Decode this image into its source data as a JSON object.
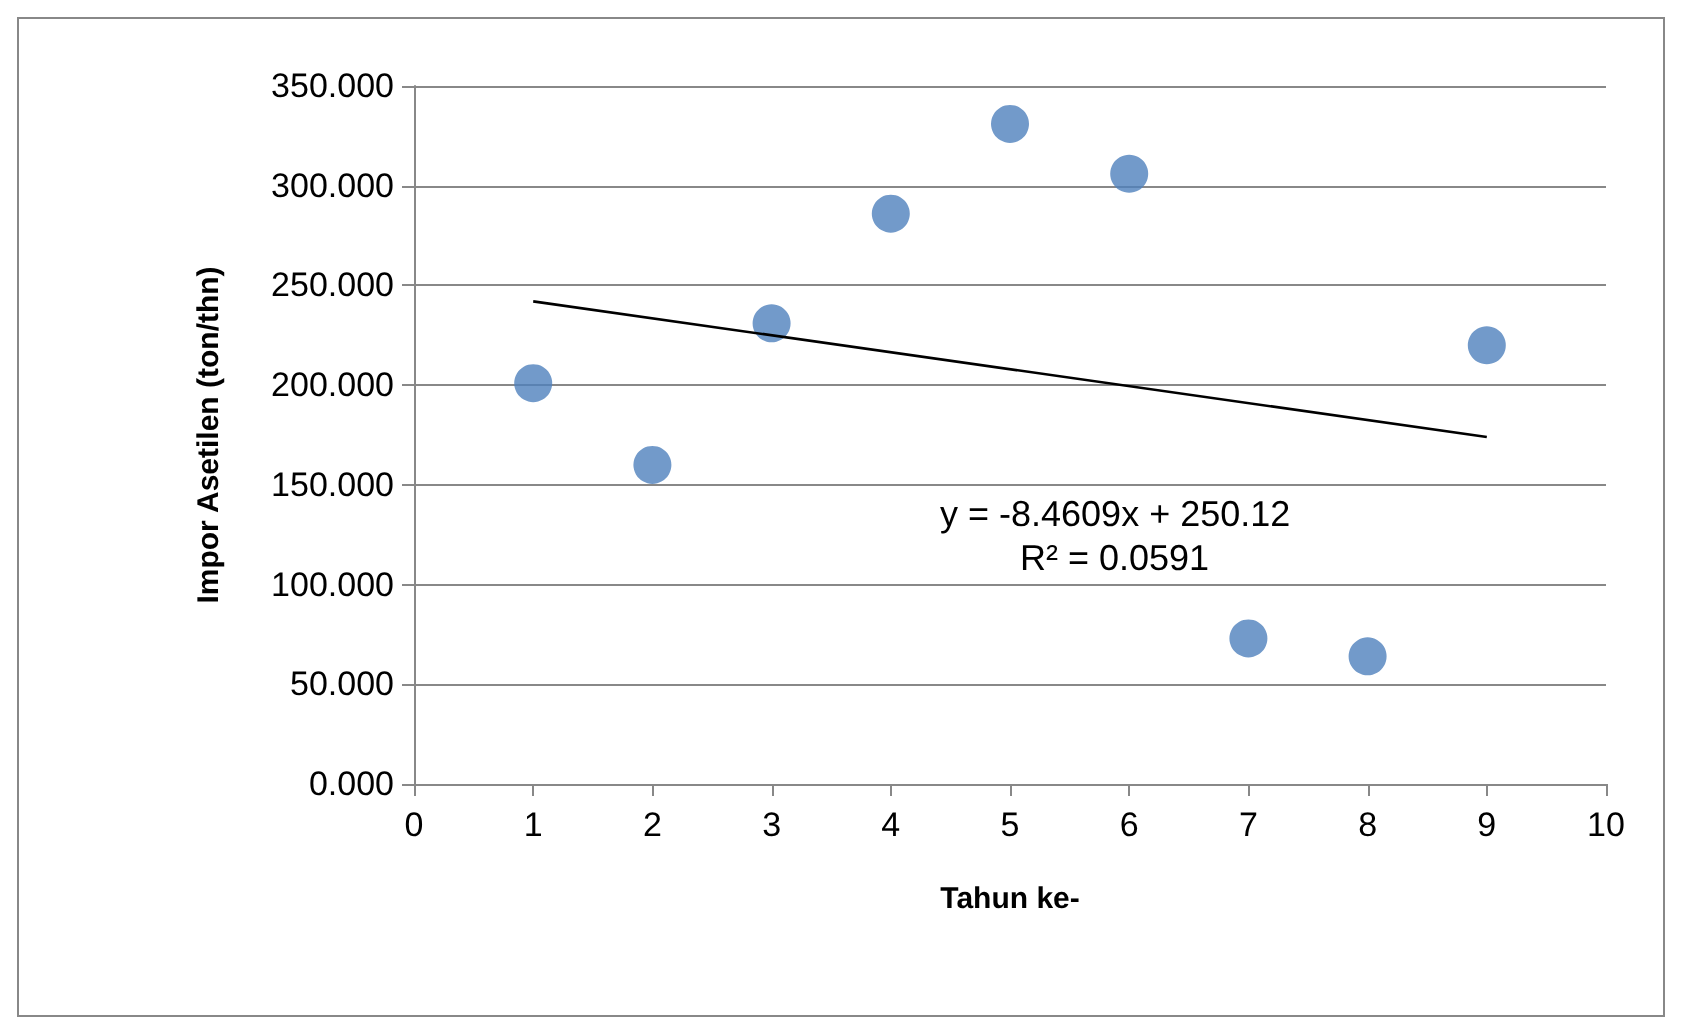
{
  "chart_data": {
    "type": "scatter",
    "xlabel": "Tahun ke-",
    "ylabel": "Impor Asetilen (ton/thn)",
    "x": [
      1,
      2,
      3,
      4,
      5,
      6,
      7,
      8,
      9
    ],
    "series": [
      {
        "color": "#4f81bd",
        "values": [
          201,
          160,
          231,
          286,
          331,
          306,
          73,
          64,
          220
        ],
        "marker": "circle"
      },
      {
        "type": "line",
        "color": "#000000",
        "x": [
          1,
          9
        ],
        "values": [
          242,
          174
        ],
        "marker": "none",
        "line_style": "solid"
      }
    ],
    "annotations": [
      "y = -8.4609x + 250.12",
      "R² = 0.0591"
    ],
    "xlim": [
      0,
      10
    ],
    "xticks": [
      0,
      1,
      2,
      3,
      4,
      5,
      6,
      7,
      8,
      9,
      10
    ],
    "ylim": [
      0,
      350
    ],
    "yticks": [
      {
        "value": 0,
        "label": "0.000"
      },
      {
        "value": 50,
        "label": "50.000"
      },
      {
        "value": 100,
        "label": "100.000"
      },
      {
        "value": 150,
        "label": "150.000"
      },
      {
        "value": 200,
        "label": "200.000"
      },
      {
        "value": 250,
        "label": "250.000"
      },
      {
        "value": 300,
        "label": "300.000"
      },
      {
        "value": 350,
        "label": "350.000"
      }
    ],
    "grid": "y"
  }
}
